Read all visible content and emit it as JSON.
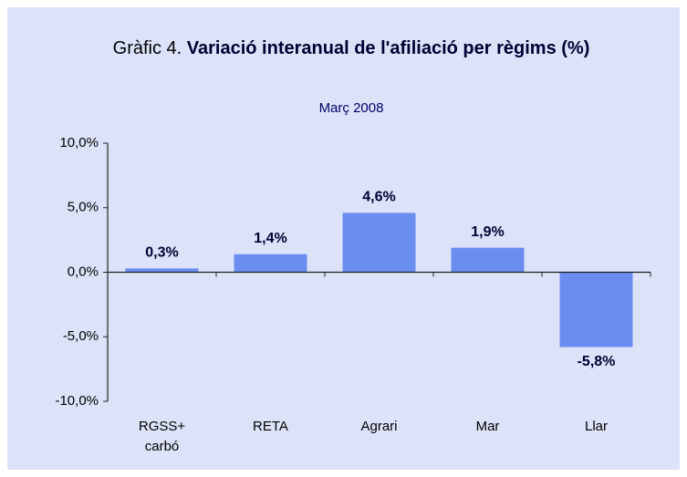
{
  "chart_data": {
    "type": "bar",
    "title_prefix": "Gràfic 4.",
    "title": "Variació interanual de l'afiliació per règims (%)",
    "subtitle": "Març 2008",
    "categories": [
      "RGSS+\ncarbó",
      "RETA",
      "Agrari",
      "Mar",
      "Llar"
    ],
    "values": [
      0.3,
      1.4,
      4.6,
      1.9,
      -5.8
    ],
    "value_labels": [
      "0,3%",
      "1,4%",
      "4,6%",
      "1,9%",
      "-5,8%"
    ],
    "color": "#6a8ef0",
    "ylim": [
      -10,
      10
    ],
    "yticks": [
      {
        "value": -10,
        "label": "-10,0%"
      },
      {
        "value": -5,
        "label": "-5,0%"
      },
      {
        "value": 0,
        "label": "0,0%"
      },
      {
        "value": 5,
        "label": "5,0%"
      },
      {
        "value": 10,
        "label": "10,0%"
      }
    ],
    "grid": false
  }
}
